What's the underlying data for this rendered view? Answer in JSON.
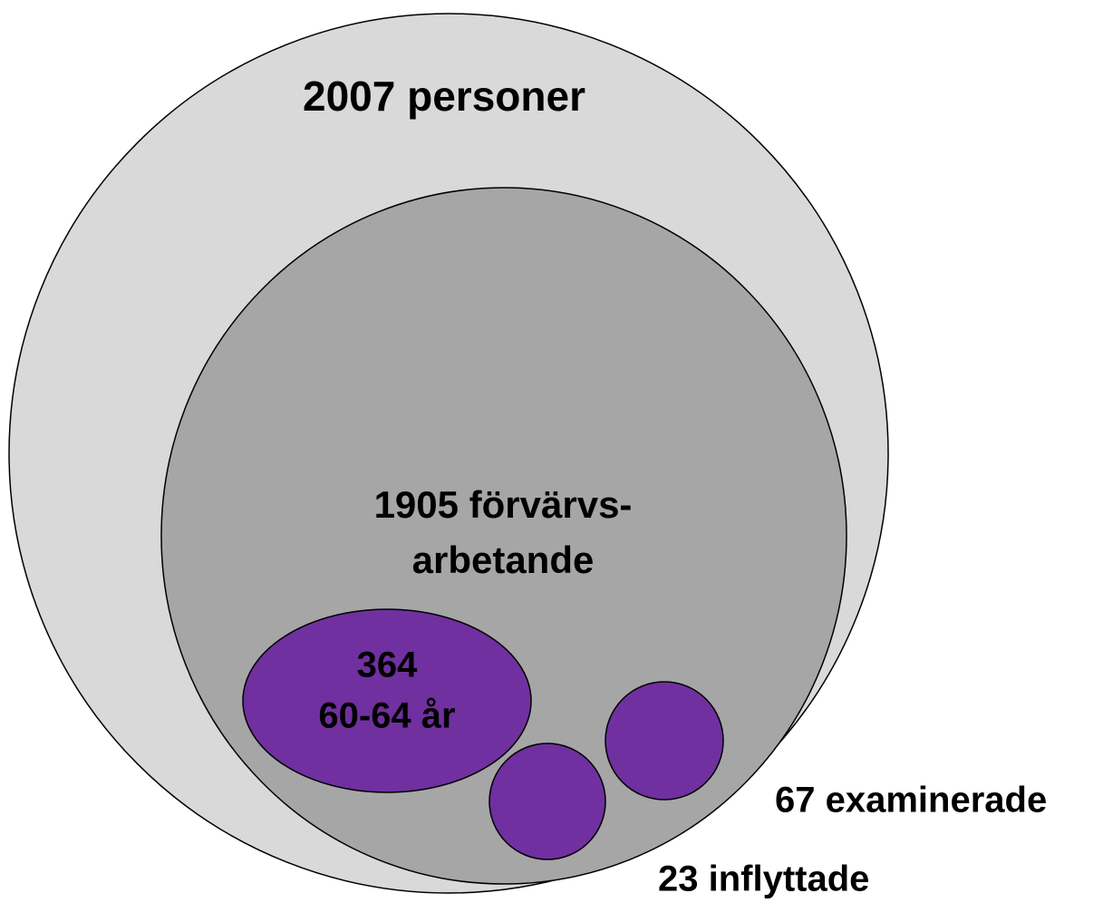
{
  "nodes": [
    {
      "lines": [
        "2007 personer"
      ]
    },
    {
      "lines": [
        "1905 förvärvs-",
        "arbetande"
      ]
    },
    {
      "lines": [
        "364",
        "60-64 år"
      ]
    },
    {
      "lines": [
        "67 examinerade"
      ]
    },
    {
      "lines": [
        "23 inflyttade"
      ]
    }
  ]
}
